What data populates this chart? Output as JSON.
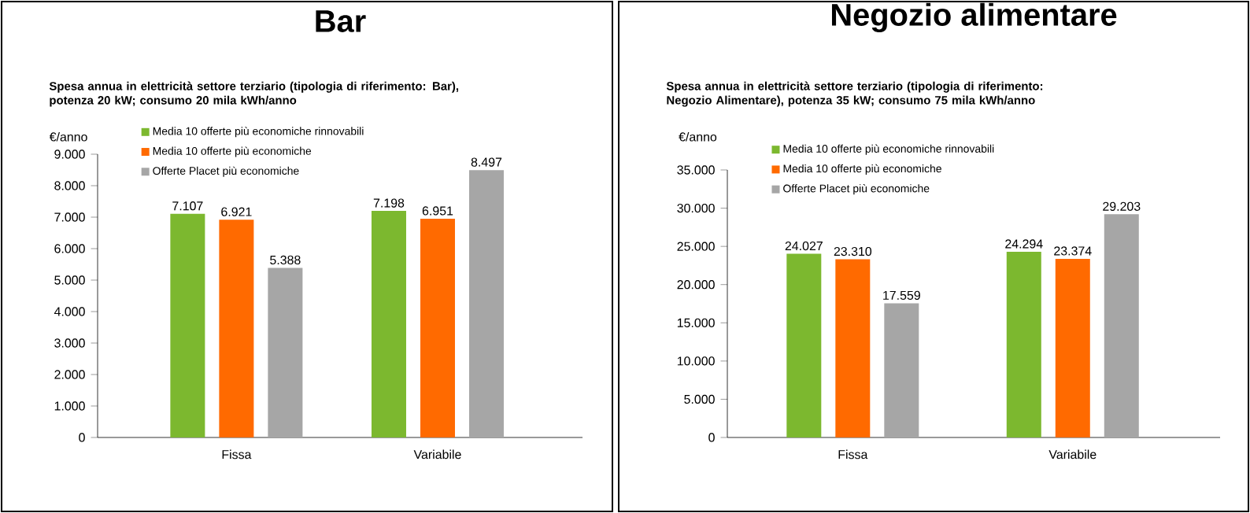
{
  "chart_data": [
    {
      "type": "bar",
      "title": "Bar",
      "subtitle": "Spesa annua in elettricità settore terziario (tipologia di riferimento: Bar), potenza 20 kW; consumo 20 mila kWh/anno",
      "ylabel": "€/anno",
      "categories": [
        "Fissa",
        "Variabile"
      ],
      "series": [
        {
          "name": "Media 10 offerte più economiche rinnovabili",
          "color": "#7cb82f",
          "values": [
            7107,
            7198
          ],
          "value_labels": [
            "7.107",
            "7.198"
          ]
        },
        {
          "name": "Media 10 offerte più economiche",
          "color": "#ff6a00",
          "values": [
            6921,
            6951
          ],
          "value_labels": [
            "6.921",
            "6.951"
          ]
        },
        {
          "name": "Offerte Placet più economiche",
          "color": "#a6a6a6",
          "values": [
            5388,
            8497
          ],
          "value_labels": [
            "5.388",
            "8.497"
          ]
        }
      ],
      "ylim": [
        0,
        9000
      ],
      "yticks": [
        {
          "value": 0,
          "label": "0"
        },
        {
          "value": 1000,
          "label": "1.000"
        },
        {
          "value": 2000,
          "label": "2.000"
        },
        {
          "value": 3000,
          "label": "3.000"
        },
        {
          "value": 4000,
          "label": "4.000"
        },
        {
          "value": 5000,
          "label": "5.000"
        },
        {
          "value": 6000,
          "label": "6.000"
        },
        {
          "value": 7000,
          "label": "7.000"
        },
        {
          "value": 8000,
          "label": "8.000"
        },
        {
          "value": 9000,
          "label": "9.000"
        }
      ],
      "legend": "top left",
      "grid": false
    },
    {
      "type": "bar",
      "title": "Negozio alimentare",
      "subtitle": "Spesa annua in elettricità settore terziario (tipologia di riferimento: Negozio Alimentare), potenza 35 kW; consumo 75 mila kWh/anno",
      "ylabel": "€/anno",
      "categories": [
        "Fissa",
        "Variabile"
      ],
      "series": [
        {
          "name": "Media 10 offerte più economiche rinnovabili",
          "color": "#7cb82f",
          "values": [
            24027,
            24294
          ],
          "value_labels": [
            "24.027",
            "24.294"
          ]
        },
        {
          "name": "Media 10 offerte più economiche",
          "color": "#ff6a00",
          "values": [
            23310,
            23374
          ],
          "value_labels": [
            "23.310",
            "23.374"
          ]
        },
        {
          "name": "Offerte Placet più economiche",
          "color": "#a6a6a6",
          "values": [
            17559,
            29203
          ],
          "value_labels": [
            "17.559",
            "29.203"
          ]
        }
      ],
      "ylim": [
        0,
        35000
      ],
      "yticks": [
        {
          "value": 0,
          "label": "0"
        },
        {
          "value": 5000,
          "label": "5.000"
        },
        {
          "value": 10000,
          "label": "10.000"
        },
        {
          "value": 15000,
          "label": "15.000"
        },
        {
          "value": 20000,
          "label": "20.000"
        },
        {
          "value": 25000,
          "label": "25.000"
        },
        {
          "value": 30000,
          "label": "30.000"
        },
        {
          "value": 35000,
          "label": "35.000"
        }
      ],
      "legend": "top left",
      "grid": false
    }
  ]
}
